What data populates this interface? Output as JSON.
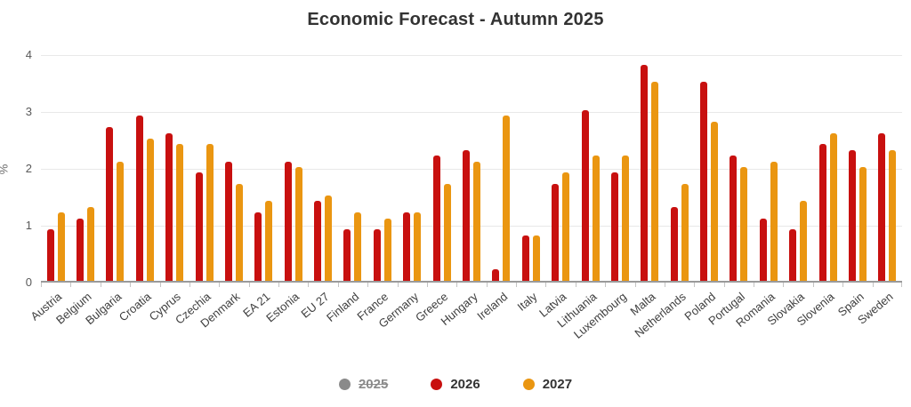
{
  "title": "Economic Forecast - Autumn 2025",
  "chart_data": {
    "type": "bar",
    "title": "Economic Forecast - Autumn 2025",
    "xlabel": "",
    "ylabel": "%",
    "ylim": [
      0,
      4
    ],
    "yticks": [
      0,
      1,
      2,
      3,
      4
    ],
    "grid": true,
    "legend_position": "bottom",
    "categories": [
      "Austria",
      "Belgium",
      "Bulgaria",
      "Croatia",
      "Cyprus",
      "Czechia",
      "Denmark",
      "EA 21",
      "Estonia",
      "EU 27",
      "Finland",
      "France",
      "Germany",
      "Greece",
      "Hungary",
      "Ireland",
      "Italy",
      "Latvia",
      "Lithuania",
      "Luxembourg",
      "Malta",
      "Netherlands",
      "Poland",
      "Portugal",
      "Romania",
      "Slovakia",
      "Slovenia",
      "Spain",
      "Sweden"
    ],
    "series": [
      {
        "name": "2025",
        "color": "#8a8a8a",
        "hidden": true,
        "values": []
      },
      {
        "name": "2026",
        "color": "#c8100f",
        "hidden": false,
        "values": [
          0.9,
          1.1,
          2.7,
          2.9,
          2.6,
          1.9,
          2.1,
          1.2,
          2.1,
          1.4,
          0.9,
          0.9,
          1.2,
          2.2,
          2.3,
          0.2,
          0.8,
          1.7,
          3.0,
          1.9,
          3.8,
          1.3,
          3.5,
          2.2,
          1.1,
          0.9,
          2.4,
          2.3,
          2.6
        ]
      },
      {
        "name": "2027",
        "color": "#ea9611",
        "hidden": false,
        "values": [
          1.2,
          1.3,
          2.1,
          2.5,
          2.4,
          2.4,
          1.7,
          1.4,
          2.0,
          1.5,
          1.2,
          1.1,
          1.2,
          1.7,
          2.1,
          2.9,
          0.8,
          1.9,
          2.2,
          2.2,
          3.5,
          1.7,
          2.8,
          2.0,
          2.1,
          1.4,
          2.6,
          2.0,
          2.3
        ]
      }
    ]
  },
  "colors": {
    "background": "#ffffff",
    "title_text": "#333333",
    "axis_text": "#595959",
    "category_text": "#404040",
    "gridline": "#e8e8e8",
    "axis_line": "#9a9a9a"
  }
}
